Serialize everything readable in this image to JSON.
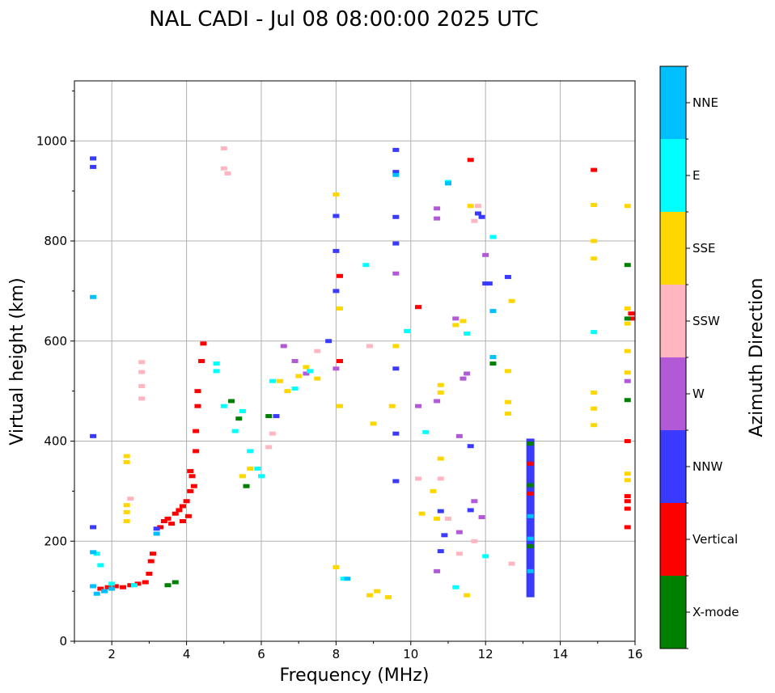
{
  "chart_data": {
    "type": "scatter",
    "title": "NAL CADI - Jul 08 08:00:00 2025 UTC",
    "xlabel": "Frequency (MHz)",
    "ylabel": "Virtual height (km)",
    "xlim": [
      1.0,
      16.0
    ],
    "ylim": [
      0,
      1120
    ],
    "xticks": [
      2,
      4,
      6,
      8,
      10,
      12,
      14,
      16
    ],
    "yticks": [
      0,
      200,
      400,
      600,
      800,
      1000
    ],
    "xtick_labels": [
      "2",
      "4",
      "6",
      "8",
      "10",
      "12",
      "14",
      "16"
    ],
    "ytick_labels": [
      "0",
      "200",
      "400",
      "600",
      "800",
      "1000"
    ],
    "grid": true,
    "colorbar": {
      "label": "Azimuth Direction",
      "categories": [
        {
          "name": "X-mode",
          "color": "#008000"
        },
        {
          "name": "Vertical",
          "color": "#ff0000"
        },
        {
          "name": "NNW",
          "color": "#3a3aff"
        },
        {
          "name": "W",
          "color": "#b259d8"
        },
        {
          "name": "SSW",
          "color": "#ffb6c1"
        },
        {
          "name": "SSE",
          "color": "#ffd700"
        },
        {
          "name": "E",
          "color": "#00ffff"
        },
        {
          "name": "NNE",
          "color": "#00bfff"
        }
      ]
    },
    "series": [
      {
        "name": "Vertical",
        "points": [
          [
            1.7,
            105
          ],
          [
            1.9,
            108
          ],
          [
            2.1,
            110
          ],
          [
            2.3,
            108
          ],
          [
            2.5,
            112
          ],
          [
            2.7,
            115
          ],
          [
            2.9,
            118
          ],
          [
            3.0,
            135
          ],
          [
            3.05,
            160
          ],
          [
            3.1,
            175
          ],
          [
            3.3,
            228
          ],
          [
            3.4,
            240
          ],
          [
            3.5,
            245
          ],
          [
            3.7,
            255
          ],
          [
            3.8,
            262
          ],
          [
            3.9,
            270
          ],
          [
            4.0,
            280
          ],
          [
            4.1,
            300
          ],
          [
            4.1,
            340
          ],
          [
            4.15,
            330
          ],
          [
            4.25,
            380
          ],
          [
            4.25,
            420
          ],
          [
            4.3,
            470
          ],
          [
            4.3,
            500
          ],
          [
            4.45,
            595
          ],
          [
            4.4,
            560
          ],
          [
            4.2,
            310
          ],
          [
            4.05,
            250
          ],
          [
            3.9,
            240
          ],
          [
            3.6,
            235
          ],
          [
            8.1,
            560
          ],
          [
            8.1,
            730
          ],
          [
            10.2,
            668
          ],
          [
            11.6,
            962
          ],
          [
            13.2,
            355
          ],
          [
            13.2,
            295
          ],
          [
            14.9,
            942
          ],
          [
            15.8,
            400
          ],
          [
            15.8,
            290
          ],
          [
            15.8,
            280
          ],
          [
            15.8,
            265
          ],
          [
            15.8,
            228
          ],
          [
            15.9,
            655
          ],
          [
            15.9,
            645
          ]
        ]
      },
      {
        "name": "NNW",
        "points": [
          [
            1.5,
            965
          ],
          [
            1.5,
            948
          ],
          [
            1.5,
            410
          ],
          [
            1.5,
            228
          ],
          [
            3.2,
            225
          ],
          [
            6.4,
            450
          ],
          [
            7.8,
            600
          ],
          [
            8.0,
            780
          ],
          [
            8.0,
            850
          ],
          [
            8.0,
            700
          ],
          [
            9.6,
            982
          ],
          [
            9.6,
            938
          ],
          [
            9.6,
            848
          ],
          [
            9.6,
            795
          ],
          [
            9.6,
            545
          ],
          [
            9.6,
            415
          ],
          [
            9.6,
            320
          ],
          [
            10.8,
            260
          ],
          [
            10.9,
            212
          ],
          [
            10.8,
            180
          ],
          [
            11.8,
            855
          ],
          [
            11.9,
            848
          ],
          [
            12.0,
            715
          ],
          [
            12.1,
            715
          ],
          [
            12.6,
            728
          ],
          [
            11.6,
            390
          ],
          [
            11.6,
            262
          ]
        ]
      },
      {
        "name": "W",
        "points": [
          [
            6.6,
            590
          ],
          [
            6.9,
            560
          ],
          [
            7.2,
            535
          ],
          [
            8.0,
            545
          ],
          [
            9.6,
            735
          ],
          [
            10.7,
            865
          ],
          [
            10.7,
            845
          ],
          [
            11.2,
            645
          ],
          [
            11.5,
            535
          ],
          [
            11.4,
            525
          ],
          [
            10.2,
            470
          ],
          [
            10.7,
            480
          ],
          [
            11.3,
            410
          ],
          [
            11.3,
            218
          ],
          [
            11.9,
            248
          ],
          [
            11.7,
            280
          ],
          [
            10.7,
            140
          ],
          [
            12.0,
            772
          ],
          [
            15.8,
            520
          ]
        ]
      },
      {
        "name": "SSW",
        "points": [
          [
            2.8,
            558
          ],
          [
            2.8,
            538
          ],
          [
            2.8,
            510
          ],
          [
            2.8,
            485
          ],
          [
            5.0,
            985
          ],
          [
            5.0,
            945
          ],
          [
            5.1,
            935
          ],
          [
            6.2,
            388
          ],
          [
            6.3,
            415
          ],
          [
            7.5,
            580
          ],
          [
            8.9,
            590
          ],
          [
            10.2,
            325
          ],
          [
            10.8,
            325
          ],
          [
            11.0,
            245
          ],
          [
            11.3,
            175
          ],
          [
            11.7,
            200
          ],
          [
            11.7,
            840
          ],
          [
            11.8,
            870
          ],
          [
            12.7,
            155
          ],
          [
            2.5,
            285
          ]
        ]
      },
      {
        "name": "SSE",
        "points": [
          [
            2.4,
            370
          ],
          [
            2.4,
            358
          ],
          [
            2.4,
            272
          ],
          [
            2.4,
            258
          ],
          [
            2.4,
            240
          ],
          [
            5.5,
            330
          ],
          [
            5.7,
            345
          ],
          [
            6.5,
            520
          ],
          [
            6.7,
            500
          ],
          [
            7.0,
            530
          ],
          [
            7.2,
            548
          ],
          [
            7.5,
            525
          ],
          [
            8.0,
            893
          ],
          [
            8.1,
            665
          ],
          [
            8.1,
            470
          ],
          [
            8.0,
            148
          ],
          [
            8.9,
            92
          ],
          [
            9.1,
            100
          ],
          [
            9.4,
            88
          ],
          [
            9.5,
            470
          ],
          [
            9.6,
            590
          ],
          [
            10.3,
            255
          ],
          [
            10.6,
            300
          ],
          [
            10.7,
            245
          ],
          [
            10.8,
            365
          ],
          [
            10.8,
            512
          ],
          [
            10.8,
            497
          ],
          [
            11.4,
            640
          ],
          [
            11.6,
            870
          ],
          [
            12.6,
            478
          ],
          [
            12.6,
            455
          ],
          [
            12.6,
            540
          ],
          [
            12.7,
            680
          ],
          [
            14.9,
            872
          ],
          [
            14.9,
            800
          ],
          [
            14.9,
            765
          ],
          [
            14.9,
            497
          ],
          [
            14.9,
            465
          ],
          [
            14.9,
            432
          ],
          [
            15.8,
            870
          ],
          [
            15.8,
            665
          ],
          [
            15.8,
            635
          ],
          [
            15.8,
            580
          ],
          [
            15.8,
            537
          ],
          [
            15.8,
            335
          ],
          [
            15.8,
            322
          ],
          [
            11.2,
            632
          ],
          [
            11.5,
            92
          ],
          [
            9.0,
            435
          ]
        ]
      },
      {
        "name": "E",
        "points": [
          [
            1.6,
            175
          ],
          [
            1.7,
            152
          ],
          [
            2.0,
            115
          ],
          [
            2.6,
            112
          ],
          [
            4.8,
            555
          ],
          [
            4.8,
            540
          ],
          [
            5.0,
            470
          ],
          [
            5.3,
            420
          ],
          [
            5.5,
            460
          ],
          [
            5.7,
            380
          ],
          [
            5.9,
            345
          ],
          [
            6.0,
            330
          ],
          [
            6.3,
            520
          ],
          [
            6.9,
            505
          ],
          [
            7.3,
            540
          ],
          [
            8.8,
            752
          ],
          [
            8.2,
            125
          ],
          [
            9.9,
            620
          ],
          [
            11.0,
            918
          ],
          [
            11.2,
            108
          ],
          [
            11.5,
            615
          ],
          [
            12.0,
            170
          ],
          [
            12.2,
            808
          ],
          [
            14.9,
            618
          ],
          [
            10.4,
            418
          ]
        ]
      },
      {
        "name": "NNE",
        "points": [
          [
            1.5,
            688
          ],
          [
            1.5,
            178
          ],
          [
            1.5,
            110
          ],
          [
            1.6,
            95
          ],
          [
            1.8,
            100
          ],
          [
            2.0,
            105
          ],
          [
            3.2,
            215
          ],
          [
            8.3,
            125
          ],
          [
            9.6,
            932
          ],
          [
            11.0,
            915
          ],
          [
            12.2,
            660
          ],
          [
            12.2,
            568
          ],
          [
            13.2,
            250
          ],
          [
            13.2,
            205
          ],
          [
            13.2,
            140
          ]
        ]
      },
      {
        "name": "X-mode",
        "points": [
          [
            3.5,
            112
          ],
          [
            3.7,
            118
          ],
          [
            5.2,
            480
          ],
          [
            5.4,
            445
          ],
          [
            5.6,
            310
          ],
          [
            6.2,
            450
          ],
          [
            12.2,
            555
          ],
          [
            15.8,
            752
          ],
          [
            15.8,
            482
          ],
          [
            15.8,
            645
          ],
          [
            13.2,
            395
          ],
          [
            13.2,
            312
          ],
          [
            13.2,
            190
          ]
        ]
      }
    ],
    "column_13_2MHz": {
      "x": 13.2,
      "y_from": 88,
      "y_to": 405
    }
  }
}
